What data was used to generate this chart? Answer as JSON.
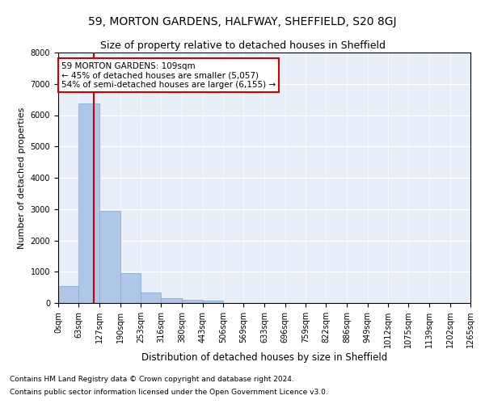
{
  "title": "59, MORTON GARDENS, HALFWAY, SHEFFIELD, S20 8GJ",
  "subtitle": "Size of property relative to detached houses in Sheffield",
  "xlabel": "Distribution of detached houses by size in Sheffield",
  "ylabel": "Number of detached properties",
  "footnote1": "Contains HM Land Registry data © Crown copyright and database right 2024.",
  "footnote2": "Contains public sector information licensed under the Open Government Licence v3.0.",
  "annotation_title": "59 MORTON GARDENS: 109sqm",
  "annotation_line1": "← 45% of detached houses are smaller (5,057)",
  "annotation_line2": "54% of semi-detached houses are larger (6,155) →",
  "property_size": 109,
  "bin_edges": [
    0,
    63,
    127,
    190,
    253,
    316,
    380,
    443,
    506,
    569,
    633,
    696,
    759,
    822,
    886,
    949,
    1012,
    1075,
    1139,
    1202,
    1265
  ],
  "bar_heights": [
    550,
    6380,
    2950,
    960,
    340,
    160,
    100,
    70,
    0,
    0,
    0,
    0,
    0,
    0,
    0,
    0,
    0,
    0,
    0,
    0
  ],
  "bar_color": "#aec6e8",
  "bar_edgecolor": "#7aaad0",
  "vline_color": "#cc0000",
  "vline_x": 109,
  "annotation_box_color": "#cc0000",
  "annotation_font_size": 7.5,
  "title_fontsize": 10,
  "subtitle_fontsize": 9,
  "xlabel_fontsize": 8.5,
  "ylabel_fontsize": 8,
  "tick_fontsize": 7,
  "footnote_fontsize": 6.5,
  "ylim": [
    0,
    8000
  ],
  "yticks": [
    0,
    1000,
    2000,
    3000,
    4000,
    5000,
    6000,
    7000,
    8000
  ],
  "background_color": "#e8eef8",
  "grid_color": "#ffffff"
}
